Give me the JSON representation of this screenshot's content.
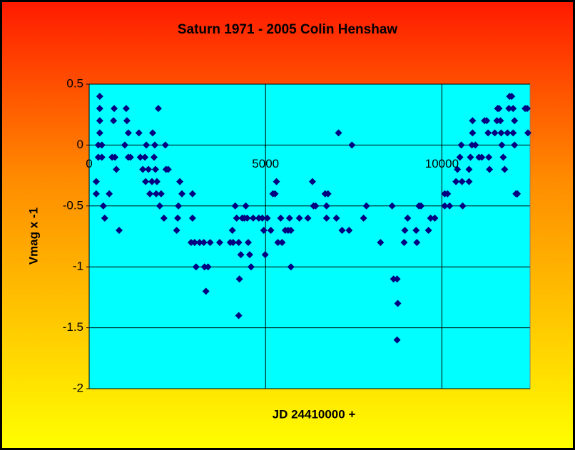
{
  "chart_data": {
    "type": "scatter",
    "title": "Saturn 1971 - 2005 Colin Henshaw",
    "x_label": "JD 24410000 +",
    "y_label": "Vmag x -1",
    "xlim": [
      0,
      12500
    ],
    "ylim": [
      -2,
      0.5
    ],
    "xticks": [
      0,
      5000,
      10000
    ],
    "yticks": [
      -2,
      -1.5,
      -1,
      -0.5,
      0,
      0.5
    ],
    "grid": true,
    "color": "#000080",
    "x": [
      200,
      200,
      260,
      260,
      300,
      300,
      300,
      300,
      360,
      360,
      400,
      440,
      570,
      650,
      690,
      710,
      770,
      730,
      850,
      1010,
      1050,
      1070,
      1110,
      1110,
      1170,
      1410,
      1450,
      1520,
      1580,
      1600,
      1620,
      1680,
      1720,
      1780,
      1800,
      1840,
      1860,
      1880,
      1900,
      1920,
      1960,
      2000,
      2040,
      2120,
      2160,
      2180,
      2240,
      2480,
      2510,
      2530,
      2570,
      2630,
      2890,
      2930,
      2930,
      2990,
      3030,
      3130,
      3250,
      3270,
      3310,
      3370,
      3430,
      3700,
      4000,
      4060,
      4080,
      4140,
      4180,
      4240,
      4240,
      4260,
      4300,
      4340,
      4400,
      4440,
      4480,
      4510,
      4550,
      4590,
      4650,
      4810,
      4910,
      4950,
      4990,
      5050,
      5150,
      5210,
      5270,
      5310,
      5350,
      5430,
      5470,
      5560,
      5640,
      5680,
      5720,
      5720,
      5960,
      6200,
      6330,
      6360,
      6420,
      6690,
      6770,
      6730,
      6730,
      7010,
      7070,
      7170,
      7370,
      7450,
      7780,
      7860,
      8260,
      8590,
      8630,
      8730,
      8750,
      8730,
      8930,
      8950,
      9030,
      9270,
      9290,
      9350,
      9410,
      9620,
      9680,
      9800,
      10080,
      10080,
      10160,
      10220,
      10400,
      10440,
      10510,
      10550,
      10570,
      10590,
      10770,
      10770,
      10810,
      10850,
      10870,
      10870,
      10950,
      11050,
      11130,
      11210,
      11270,
      11330,
      11350,
      11310,
      11500,
      11560,
      11580,
      11620,
      11660,
      11700,
      11680,
      11740,
      11780,
      11860,
      11900,
      11920,
      11980,
      12020,
      12060,
      12020,
      12060,
      12100,
      12140,
      12360,
      12420,
      12440
    ],
    "y": [
      -0.3,
      -0.4,
      -0.1,
      0,
      0.4,
      0.3,
      0.2,
      0.1,
      0,
      -0.1,
      -0.5,
      -0.6,
      -0.4,
      -0.1,
      0.2,
      0.3,
      -0.2,
      -0.1,
      -0.7,
      0,
      0.3,
      0.2,
      0.1,
      -0.1,
      -0.1,
      0.1,
      -0.1,
      -0.2,
      -0.1,
      -0.3,
      0,
      -0.2,
      -0.4,
      -0.3,
      0.1,
      -0.1,
      0,
      -0.2,
      -0.4,
      -0.3,
      0.3,
      -0.5,
      -0.4,
      -0.6,
      0,
      -0.2,
      -0.2,
      -0.7,
      -0.6,
      -0.5,
      -0.3,
      -0.4,
      -0.8,
      -0.6,
      -0.4,
      -0.8,
      -1,
      -0.8,
      -0.8,
      -1,
      -1.2,
      -1,
      -0.8,
      -0.8,
      -0.8,
      -0.7,
      -0.8,
      -0.5,
      -0.6,
      -0.8,
      -1.4,
      -1.1,
      -0.9,
      -0.6,
      -0.6,
      -0.5,
      -0.6,
      -0.8,
      -0.9,
      -1,
      -0.6,
      -0.6,
      -0.6,
      -0.7,
      -0.9,
      -0.6,
      -0.7,
      -0.4,
      -0.4,
      -0.3,
      -0.8,
      -0.6,
      -0.8,
      -0.7,
      -0.7,
      -0.6,
      -1,
      -0.7,
      -0.6,
      -0.6,
      -0.3,
      -0.5,
      -0.5,
      -0.4,
      -0.4,
      -0.5,
      -0.6,
      -0.6,
      0.1,
      -0.7,
      -0.7,
      0,
      -0.6,
      -0.5,
      -0.8,
      -0.5,
      -1.1,
      -1.1,
      -1.3,
      -1.6,
      -0.8,
      -0.7,
      -0.6,
      -0.7,
      -0.8,
      -0.5,
      -0.5,
      -0.7,
      -0.6,
      -0.6,
      -0.4,
      -0.5,
      -0.4,
      -0.5,
      -0.3,
      -0.2,
      -0.1,
      0,
      -0.3,
      -0.5,
      -0.3,
      -0.2,
      -0.1,
      0,
      0.2,
      0.1,
      0,
      -0.1,
      -0.1,
      0.2,
      0.2,
      -0.1,
      -0.2,
      0.1,
      0.1,
      0.2,
      0.3,
      0.3,
      0.2,
      0,
      0.1,
      -0.1,
      -0.2,
      0.1,
      0.3,
      0.4,
      0.4,
      0.3,
      0.2,
      0.1,
      0,
      -0.4,
      -0.4,
      0.3,
      0.3,
      0.1
    ]
  }
}
